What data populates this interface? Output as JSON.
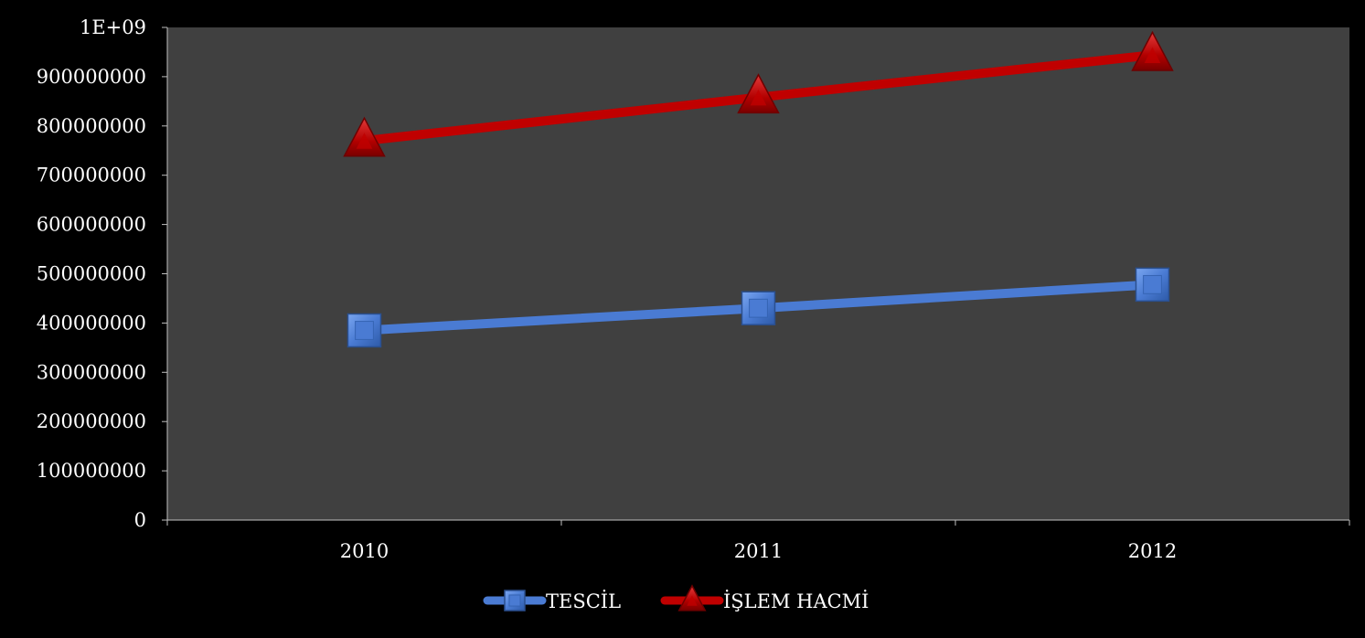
{
  "chart_data": {
    "type": "line",
    "categories": [
      "2010",
      "2011",
      "2012"
    ],
    "series": [
      {
        "name": "TESCİL",
        "values": [
          385000000,
          430000000,
          478000000
        ],
        "color": "#4a7bd3",
        "marker": "square"
      },
      {
        "name": "İŞLEM HACMİ",
        "values": [
          770000000,
          858000000,
          944000000
        ],
        "color": "#c00000",
        "marker": "triangle"
      }
    ],
    "ylim": [
      0,
      1000000000
    ],
    "y_tick_values": [
      0,
      100000000,
      200000000,
      300000000,
      400000000,
      500000000,
      600000000,
      700000000,
      800000000,
      900000000,
      1000000000
    ],
    "y_tick_labels": [
      "0",
      "100000000",
      "200000000",
      "300000000",
      "400000000",
      "500000000",
      "600000000",
      "700000000",
      "800000000",
      "900000000",
      "1E+09"
    ],
    "grid": false,
    "legend_position": "bottom",
    "plot_background": "#404040",
    "page_background": "#000000"
  }
}
